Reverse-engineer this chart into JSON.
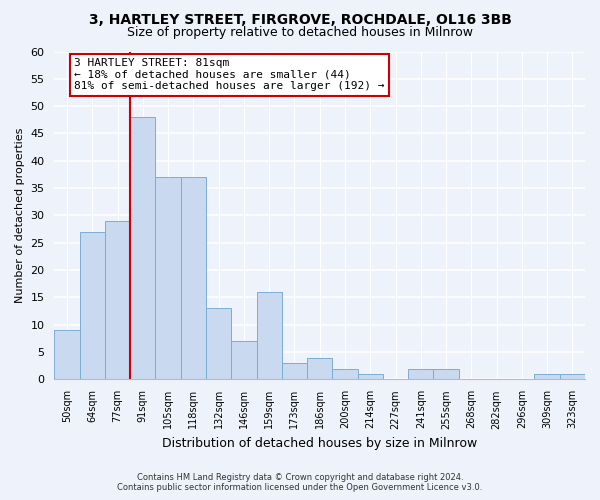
{
  "title": "3, HARTLEY STREET, FIRGROVE, ROCHDALE, OL16 3BB",
  "subtitle": "Size of property relative to detached houses in Milnrow",
  "xlabel": "Distribution of detached houses by size in Milnrow",
  "ylabel": "Number of detached properties",
  "footer_line1": "Contains HM Land Registry data © Crown copyright and database right 2024.",
  "footer_line2": "Contains public sector information licensed under the Open Government Licence v3.0.",
  "bar_labels": [
    "50sqm",
    "64sqm",
    "77sqm",
    "91sqm",
    "105sqm",
    "118sqm",
    "132sqm",
    "146sqm",
    "159sqm",
    "173sqm",
    "186sqm",
    "200sqm",
    "214sqm",
    "227sqm",
    "241sqm",
    "255sqm",
    "268sqm",
    "282sqm",
    "296sqm",
    "309sqm",
    "323sqm"
  ],
  "bar_values": [
    9,
    27,
    29,
    48,
    37,
    37,
    13,
    7,
    16,
    3,
    4,
    2,
    1,
    0,
    2,
    2,
    0,
    0,
    0,
    1,
    1
  ],
  "bar_color": "#c9d9f0",
  "bar_edgecolor": "#7aadd4",
  "vline_color": "#cc0000",
  "vline_x_index": 2,
  "ylim": [
    0,
    60
  ],
  "yticks": [
    0,
    5,
    10,
    15,
    20,
    25,
    30,
    35,
    40,
    45,
    50,
    55,
    60
  ],
  "annotation_line1": "3 HARTLEY STREET: 81sqm",
  "annotation_line2": "← 18% of detached houses are smaller (44)",
  "annotation_line3": "81% of semi-detached houses are larger (192) →",
  "annotation_box_edgecolor": "#cc0000",
  "annotation_box_facecolor": "#ffffff",
  "bg_color": "#eef2fb",
  "title_fontsize": 10,
  "subtitle_fontsize": 9
}
